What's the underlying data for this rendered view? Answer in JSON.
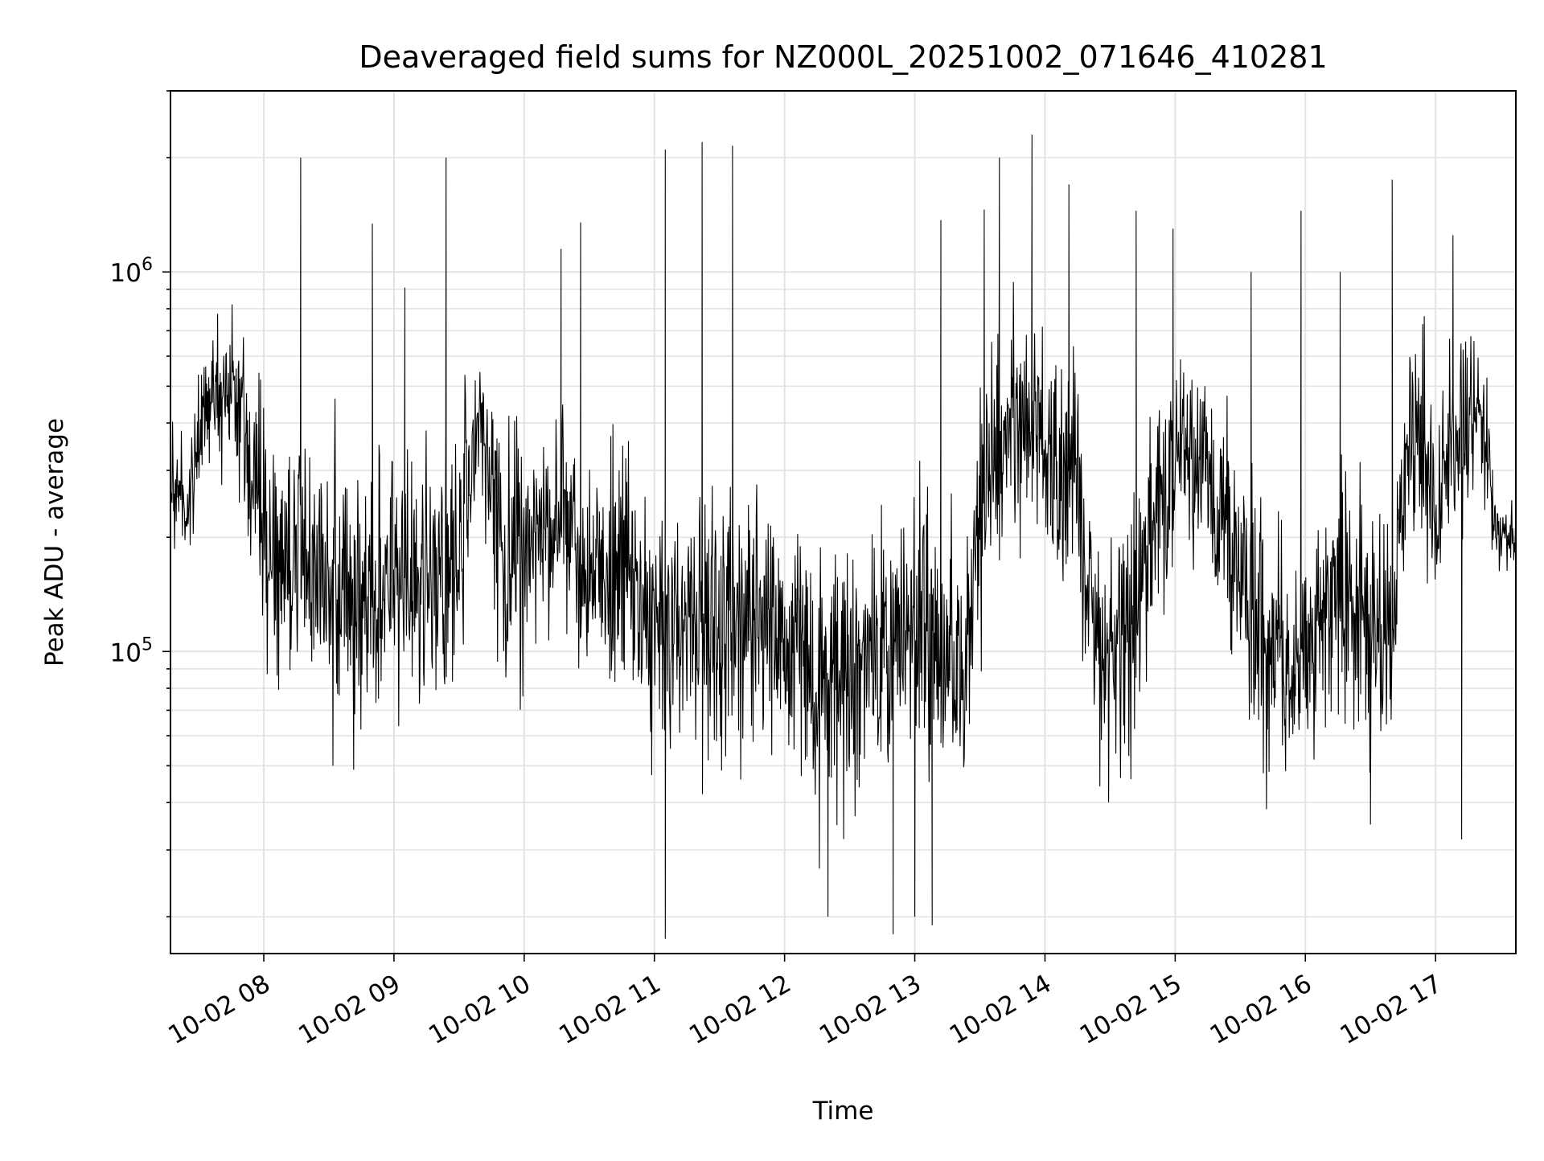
{
  "chart_data": {
    "type": "line",
    "title": "Deaveraged field sums for NZ000L_20251002_071646_410281",
    "xlabel": "Time",
    "ylabel": "Peak ADU - average",
    "yscale": "log",
    "xlim": [
      "2025-10-02 07:17",
      "2025-10-02 17:37"
    ],
    "ylim": [
      16000,
      3000000
    ],
    "grid": true,
    "line_color": "#000000",
    "x_ticks": [
      "10-02 08",
      "10-02 09",
      "10-02 10",
      "10-02 11",
      "10-02 12",
      "10-02 13",
      "10-02 14",
      "10-02 15",
      "10-02 16",
      "10-02 17"
    ],
    "y_ticks": [
      {
        "value": 100000,
        "base": "10",
        "exp": "5"
      },
      {
        "value": 1000000,
        "base": "10",
        "exp": "6"
      }
    ],
    "envelope": {
      "time": [
        "07:17",
        "07:25",
        "07:35",
        "07:45",
        "07:55",
        "08:05",
        "08:15",
        "08:30",
        "08:45",
        "09:00",
        "09:15",
        "09:30",
        "09:40",
        "09:50",
        "10:00",
        "10:15",
        "10:30",
        "10:45",
        "10:55",
        "11:05",
        "11:20",
        "11:35",
        "11:50",
        "12:05",
        "12:20",
        "12:35",
        "12:50",
        "13:00",
        "13:10",
        "13:25",
        "13:35",
        "13:45",
        "13:55",
        "14:05",
        "14:15",
        "14:25",
        "14:40",
        "14:55",
        "15:10",
        "15:25",
        "15:40",
        "15:55",
        "16:10",
        "16:25",
        "16:40",
        "16:50",
        "17:00",
        "17:10",
        "17:20",
        "17:28",
        "17:37"
      ],
      "center": [
        260000,
        230000,
        480000,
        500000,
        300000,
        160000,
        180000,
        150000,
        140000,
        160000,
        150000,
        170000,
        380000,
        160000,
        200000,
        220000,
        160000,
        180000,
        130000,
        120000,
        110000,
        120000,
        115000,
        95000,
        85000,
        90000,
        100000,
        120000,
        110000,
        90000,
        350000,
        380000,
        360000,
        330000,
        260000,
        95000,
        110000,
        280000,
        320000,
        200000,
        100000,
        90000,
        140000,
        130000,
        120000,
        380000,
        260000,
        350000,
        430000,
        210000,
        200000
      ],
      "spread": [
        1.5,
        1.6,
        1.6,
        1.8,
        2.6,
        2.6,
        2.6,
        2.6,
        2.6,
        2.8,
        2.8,
        2.5,
        1.7,
        2.5,
        2.4,
        2.3,
        2.4,
        2.4,
        2.5,
        2.6,
        2.7,
        2.6,
        2.6,
        2.7,
        2.8,
        2.8,
        2.7,
        2.6,
        2.6,
        2.9,
        2.4,
        2.2,
        2.2,
        2.3,
        2.6,
        2.4,
        2.4,
        2.3,
        2.2,
        2.4,
        2.6,
        2.4,
        2.4,
        2.6,
        2.6,
        2.3,
        2.5,
        2.3,
        2.0,
        1.3,
        1.3
      ]
    },
    "spikes": [
      {
        "time": "08:17",
        "value": 2000000
      },
      {
        "time": "08:50",
        "value": 1340000
      },
      {
        "time": "09:05",
        "value": 910000
      },
      {
        "time": "09:24",
        "value": 2000000
      },
      {
        "time": "10:17",
        "value": 1150000
      },
      {
        "time": "10:26",
        "value": 1350000
      },
      {
        "time": "11:05",
        "value": 2100000
      },
      {
        "time": "11:22",
        "value": 2200000
      },
      {
        "time": "11:36",
        "value": 2150000
      },
      {
        "time": "11:05",
        "value": 17500
      },
      {
        "time": "13:12",
        "value": 1370000
      },
      {
        "time": "13:32",
        "value": 1460000
      },
      {
        "time": "13:39",
        "value": 2000000
      },
      {
        "time": "13:54",
        "value": 2300000
      },
      {
        "time": "14:11",
        "value": 1700000
      },
      {
        "time": "14:42",
        "value": 1450000
      },
      {
        "time": "14:59",
        "value": 1300000
      },
      {
        "time": "15:35",
        "value": 1000000
      },
      {
        "time": "15:58",
        "value": 1450000
      },
      {
        "time": "16:16",
        "value": 1000000
      },
      {
        "time": "16:40",
        "value": 1750000
      },
      {
        "time": "17:08",
        "value": 1250000
      },
      {
        "time": "17:12",
        "value": 32000
      },
      {
        "time": "16:30",
        "value": 35000
      },
      {
        "time": "12:20",
        "value": 20000
      },
      {
        "time": "13:00",
        "value": 20000
      },
      {
        "time": "13:08",
        "value": 19000
      },
      {
        "time": "12:50",
        "value": 18000
      }
    ]
  }
}
